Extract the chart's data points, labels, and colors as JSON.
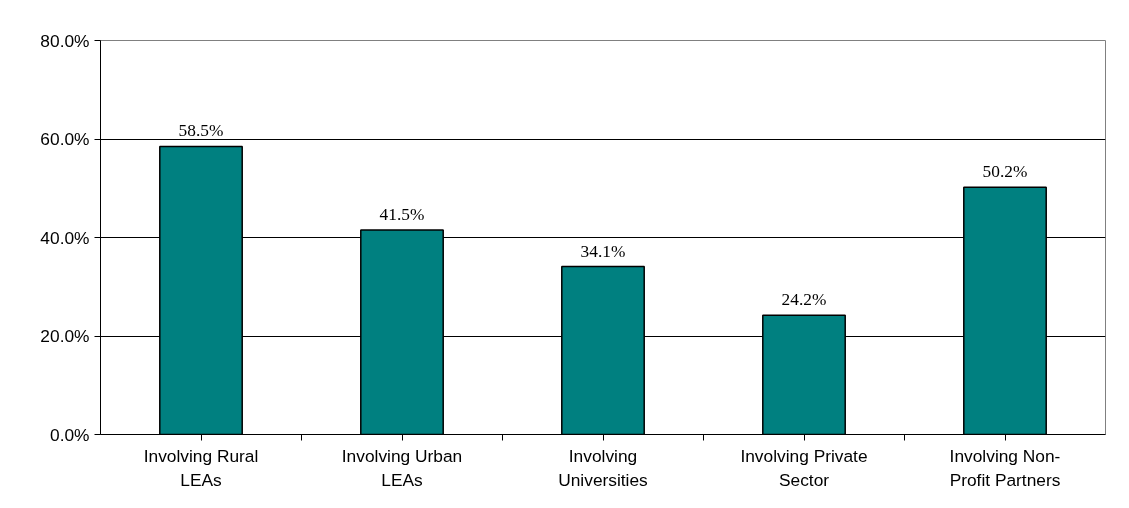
{
  "chart_data": {
    "type": "bar",
    "categories": [
      "Involving Rural LEAs",
      "Involving Urban LEAs",
      "Involving Universities",
      "Involving Private Sector",
      "Involving Non-Profit Partners"
    ],
    "values": [
      58.5,
      41.5,
      34.1,
      24.2,
      50.2
    ],
    "value_labels": [
      "58.5%",
      "41.5%",
      "34.1%",
      "24.2%",
      "50.2%"
    ],
    "color": "#008080",
    "ylim": [
      0,
      80
    ],
    "yticks": [
      {
        "value": 0,
        "label": "0.0%"
      },
      {
        "value": 20,
        "label": "20.0%"
      },
      {
        "value": 40,
        "label": "40.0%"
      },
      {
        "value": 60,
        "label": "60.0%"
      },
      {
        "value": 80,
        "label": "80.0%"
      }
    ],
    "grid": "y"
  }
}
